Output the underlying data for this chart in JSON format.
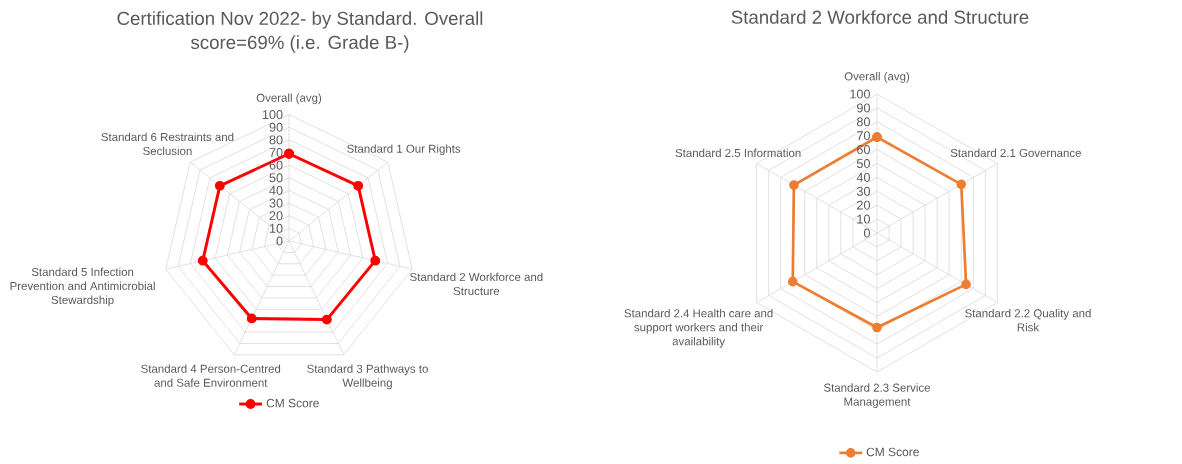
{
  "chart_data": [
    {
      "type": "radar",
      "title": "Certification Nov 2022- by Standard. Overall score=69% (i.e. Grade B-)",
      "categories": [
        "Overall (avg)",
        "Standard 1 Our Rights",
        "Standard 2 Workforce and Structure",
        "Standard 3 Pathways to Wellbeing",
        "Standard 4 Person-Centred and Safe Environment",
        "Standard 5 Infection Prevention and Antimicrobial Stewardship",
        "Standard 6 Restraints and Seclusion"
      ],
      "series": [
        {
          "name": "CM Score",
          "color": "#ff0000",
          "values": [
            69,
            70,
            70,
            69,
            68,
            70,
            70
          ]
        }
      ],
      "ylim": [
        0,
        100
      ],
      "yticks": [
        0,
        10,
        20,
        30,
        40,
        50,
        60,
        70,
        80,
        90,
        100
      ],
      "grid": true,
      "legend": "bottom",
      "marker": "circle"
    },
    {
      "type": "radar",
      "title": "Standard 2 Workforce and Structure",
      "categories": [
        "Overall (avg)",
        "Standard 2.1 Governance",
        "Standard 2.2 Quality and Risk",
        "Standard 2.3 Service Management",
        "Standard 2.4 Health care and support workers and their availability",
        "Standard 2.5 Information"
      ],
      "series": [
        {
          "name": "CM Score",
          "color": "#ed7d31",
          "values": [
            69,
            70,
            74,
            68,
            70,
            69
          ]
        }
      ],
      "ylim": [
        0,
        100
      ],
      "yticks": [
        0,
        10,
        20,
        30,
        40,
        50,
        60,
        70,
        80,
        90,
        100
      ],
      "grid": true,
      "legend": "bottom",
      "marker": "circle"
    }
  ]
}
